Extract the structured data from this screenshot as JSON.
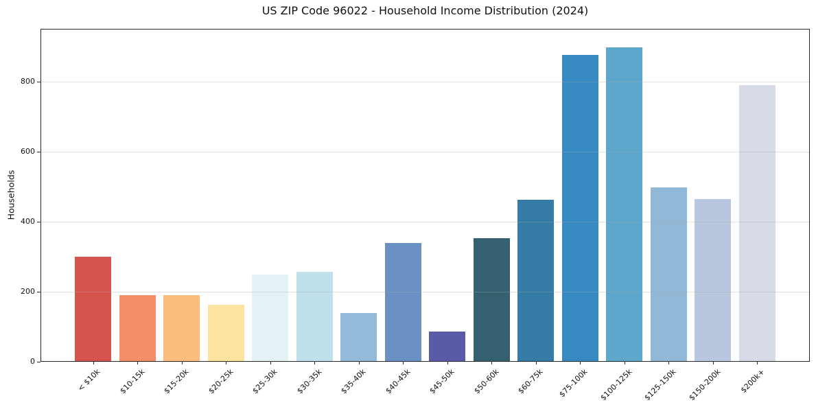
{
  "figure": {
    "background": "#ffffff",
    "text_color": "#111111",
    "axis_color": "#262626"
  },
  "chart_data": {
    "type": "bar",
    "title": "US ZIP Code 96022 - Household Income Distribution (2024)",
    "xlabel": "",
    "ylabel": "Households",
    "categories": [
      "< $10k",
      "$10-15k",
      "$15-20k",
      "$20-25k",
      "$25-30k",
      "$30-35k",
      "$35-40k",
      "$40-45k",
      "$45-50k",
      "$50-60k",
      "$60-75k",
      "$75-100k",
      "$100-125k",
      "$125-150k",
      "$150-200k",
      "$200k+"
    ],
    "values": [
      300,
      190,
      190,
      162,
      248,
      257,
      139,
      338,
      86,
      352,
      462,
      876,
      898,
      497,
      465,
      790
    ],
    "bar_colors": [
      "#d5544e",
      "#f68d6a",
      "#fbbd7e",
      "#fde3a0",
      "#e4f1f5",
      "#c0e0ec",
      "#93bad8",
      "#6b90c4",
      "#5a5aa9",
      "#35606f",
      "#347ca5",
      "#3689c1",
      "#5ca7cb",
      "#92b8d7",
      "#b8c7de",
      "#d7dae7"
    ],
    "yticks": [
      0,
      200,
      400,
      600,
      800
    ],
    "ylim": [
      0,
      950
    ],
    "grid": "horizontal",
    "gridline_color": "rgba(170,170,170,0.35)",
    "legend": "none",
    "x_tick_rotation_deg": 45
  }
}
